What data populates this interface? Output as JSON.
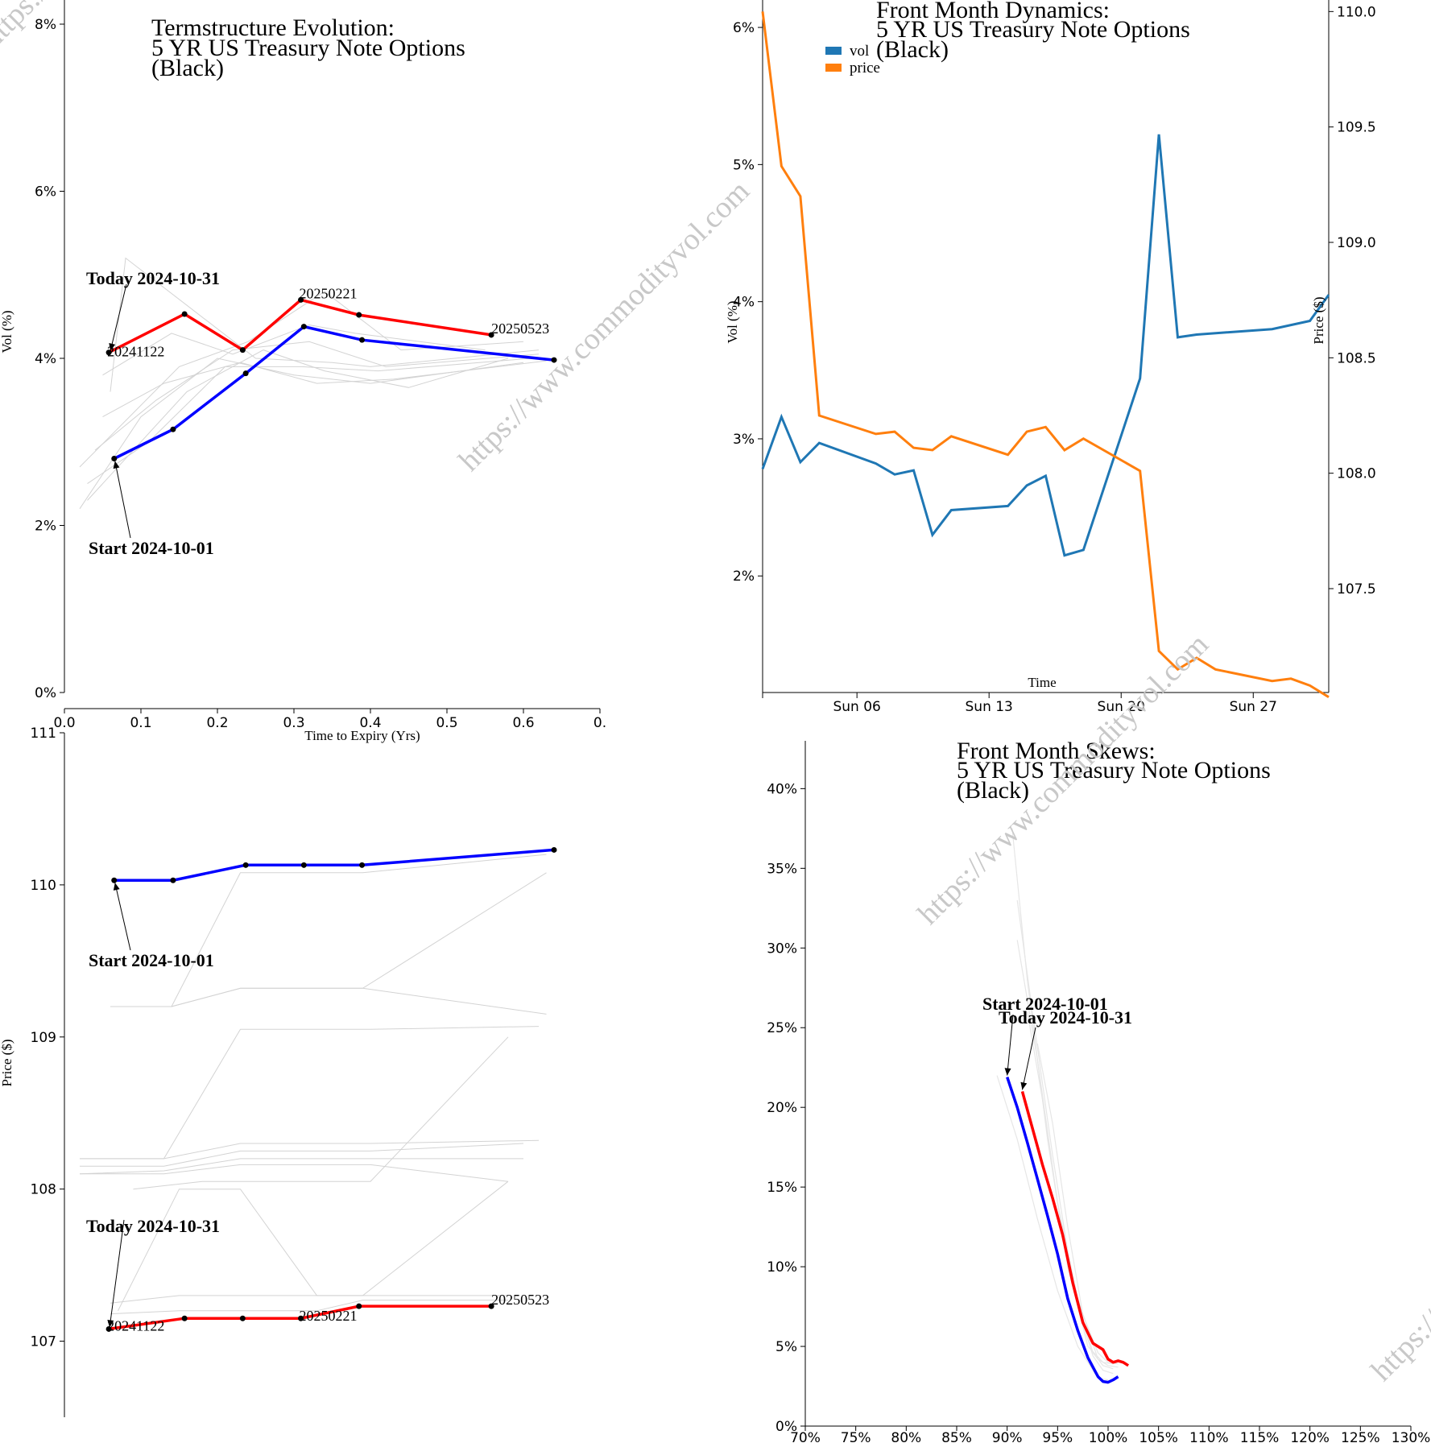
{
  "watermark": "https://www.commodityvol.com",
  "chart_data": [
    {
      "type": "line",
      "title": "Termstructure Evolution:\n5 YR US Treasury Note Options\n(Black)",
      "xlabel": "Time to Expiry (Yrs)",
      "ylabel": "Vol (%)",
      "xlim": [
        0,
        0.7
      ],
      "ylim": [
        0,
        8
      ],
      "x_ticks": [
        0.0,
        0.1,
        0.2,
        0.3,
        0.4,
        0.5,
        0.6,
        0.7
      ],
      "x_tick_labels": [
        "0.0",
        "0.1",
        "0.2",
        "0.3",
        "0.4",
        "0.5",
        "0.6",
        "0."
      ],
      "y_ticks": [
        0,
        2,
        4,
        6,
        8
      ],
      "y_tick_labels": [
        "0%",
        "2%",
        "4%",
        "6%",
        "8%"
      ],
      "series": [
        {
          "name": "Start 2024-10-01",
          "color": "#0000ff",
          "x": [
            0.065,
            0.142,
            0.237,
            0.313,
            0.389,
            0.64
          ],
          "y": [
            2.8,
            3.15,
            3.82,
            4.38,
            4.22,
            3.98
          ]
        },
        {
          "name": "Today 2024-10-31",
          "color": "#ff0000",
          "x": [
            0.058,
            0.157,
            0.233,
            0.309,
            0.385,
            0.558
          ],
          "y": [
            4.07,
            4.53,
            4.1,
            4.7,
            4.52,
            4.28
          ]
        }
      ],
      "history_color": "#d3d3d3",
      "history": [
        {
          "x": [
            0.02,
            0.1,
            0.2,
            0.3,
            0.4,
            0.6
          ],
          "y": [
            2.2,
            3.3,
            4.0,
            3.8,
            3.7,
            3.95
          ]
        },
        {
          "x": [
            0.03,
            0.11,
            0.21,
            0.31,
            0.41,
            0.61
          ],
          "y": [
            2.5,
            3.0,
            3.9,
            3.9,
            3.85,
            4.0
          ]
        },
        {
          "x": [
            0.04,
            0.12,
            0.22,
            0.32,
            0.42,
            0.62
          ],
          "y": [
            2.9,
            3.5,
            4.1,
            4.2,
            3.9,
            4.05
          ]
        },
        {
          "x": [
            0.05,
            0.13,
            0.23,
            0.33,
            0.43,
            0.63
          ],
          "y": [
            3.3,
            3.7,
            3.95,
            3.7,
            3.75,
            3.97
          ]
        },
        {
          "x": [
            0.02,
            0.15,
            0.24,
            0.34,
            0.44,
            0.6
          ],
          "y": [
            2.7,
            3.9,
            4.2,
            4.8,
            4.1,
            4.2
          ]
        },
        {
          "x": [
            0.05,
            0.14,
            0.22,
            0.32,
            0.38,
            0.55
          ],
          "y": [
            3.8,
            4.3,
            4.05,
            4.4,
            4.3,
            4.1
          ]
        },
        {
          "x": [
            0.06,
            0.08,
            0.25,
            0.35,
            0.4,
            0.62
          ],
          "y": [
            3.6,
            5.2,
            4.0,
            3.95,
            3.9,
            4.1
          ]
        },
        {
          "x": [
            0.03,
            0.16,
            0.26,
            0.34,
            0.45,
            0.58
          ],
          "y": [
            2.3,
            3.6,
            4.1,
            3.85,
            3.65,
            4.0
          ]
        }
      ],
      "annotations": [
        "Today 2024-10-31",
        "Start 2024-10-01",
        "20241122",
        "20250221",
        "20250523"
      ]
    },
    {
      "type": "line",
      "title": "Front Month Dynamics:\n5 YR US Treasury Note Options\n(Black)",
      "xlabel": "Time",
      "ylabel": "Vol (%)",
      "y2label": "Price ($)",
      "x_tick_labels": [
        "Sun 06",
        "Sun 13",
        "Sun 20",
        "Sun 27"
      ],
      "x_ticks_day": [
        6,
        13,
        20,
        27
      ],
      "xlim_day": [
        1,
        31
      ],
      "ylim": [
        1.15,
        6.2
      ],
      "y2lim": [
        107.05,
        110.05
      ],
      "y_ticks": [
        2,
        3,
        4,
        5,
        6
      ],
      "y_tick_labels": [
        "2%",
        "3%",
        "4%",
        "5%",
        "6%"
      ],
      "y2_ticks": [
        107.5,
        108.0,
        108.5,
        109.0,
        109.5,
        110.0
      ],
      "y2_tick_labels": [
        "107.5",
        "108.0",
        "108.5",
        "109.0",
        "109.5",
        "110.0"
      ],
      "legend": "top-left",
      "series": [
        {
          "name": "vol",
          "color": "#1f77b4",
          "axis": "left",
          "day": [
            1,
            2,
            3,
            4,
            7,
            8,
            9,
            10,
            11,
            14,
            15,
            16,
            17,
            18,
            21,
            22,
            23,
            24,
            28,
            30,
            31
          ],
          "y": [
            2.78,
            3.16,
            2.83,
            2.97,
            2.82,
            2.74,
            2.77,
            2.3,
            2.48,
            2.51,
            2.66,
            2.73,
            2.15,
            2.19,
            3.44,
            5.22,
            3.74,
            3.76,
            3.8,
            3.86,
            4.05
          ]
        },
        {
          "name": "price",
          "color": "#ff7f0e",
          "axis": "right",
          "day": [
            1,
            2,
            3,
            4,
            7,
            8,
            9,
            10,
            11,
            14,
            15,
            16,
            17,
            18,
            21,
            22,
            23,
            24,
            25,
            28,
            29,
            30,
            31
          ],
          "y": [
            110.0,
            109.33,
            109.2,
            108.25,
            108.17,
            108.18,
            108.11,
            108.1,
            108.16,
            108.08,
            108.18,
            108.2,
            108.1,
            108.15,
            108.01,
            107.23,
            107.15,
            107.2,
            107.15,
            107.1,
            107.11,
            107.08,
            107.03
          ]
        }
      ]
    },
    {
      "type": "line",
      "title": "",
      "xlabel": "",
      "ylabel": "Price ($)",
      "xlim": [
        0,
        0.7
      ],
      "ylim": [
        106.5,
        111.0
      ],
      "y_ticks": [
        107,
        108,
        109,
        110,
        111
      ],
      "y_tick_labels": [
        "107",
        "108",
        "109",
        "110",
        "111"
      ],
      "series": [
        {
          "name": "Start 2024-10-01",
          "color": "#0000ff",
          "x": [
            0.065,
            0.142,
            0.237,
            0.313,
            0.389,
            0.64
          ],
          "y": [
            110.03,
            110.03,
            110.13,
            110.13,
            110.13,
            110.23
          ]
        },
        {
          "name": "Today 2024-10-31",
          "color": "#ff0000",
          "x": [
            0.058,
            0.157,
            0.233,
            0.309,
            0.385,
            0.558
          ],
          "y": [
            107.08,
            107.15,
            107.15,
            107.15,
            107.23,
            107.23
          ]
        }
      ],
      "history_color": "#d3d3d3",
      "history": [
        {
          "x": [
            0.06,
            0.14,
            0.23,
            0.31,
            0.39,
            0.63
          ],
          "y": [
            109.2,
            109.2,
            109.32,
            109.32,
            109.32,
            109.15
          ]
        },
        {
          "x": [
            0.06,
            0.14,
            0.23,
            0.31,
            0.39,
            0.63
          ],
          "y": [
            109.2,
            109.2,
            110.08,
            110.08,
            110.08,
            110.2
          ]
        },
        {
          "x": [
            0.06,
            0.14,
            0.23,
            0.31,
            0.39,
            0.63
          ],
          "y": [
            109.2,
            109.2,
            109.32,
            109.32,
            109.32,
            110.08
          ]
        },
        {
          "x": [
            0.02,
            0.13,
            0.23,
            0.35,
            0.4,
            0.62
          ],
          "y": [
            108.2,
            108.2,
            109.05,
            109.05,
            109.05,
            109.07
          ]
        },
        {
          "x": [
            0.02,
            0.13,
            0.23,
            0.35,
            0.4,
            0.62
          ],
          "y": [
            108.2,
            108.2,
            108.3,
            108.3,
            108.3,
            108.32
          ]
        },
        {
          "x": [
            0.02,
            0.13,
            0.23,
            0.35,
            0.4,
            0.6
          ],
          "y": [
            108.15,
            108.15,
            108.25,
            108.25,
            108.25,
            108.3
          ]
        },
        {
          "x": [
            0.02,
            0.13,
            0.23,
            0.35,
            0.4,
            0.6
          ],
          "y": [
            108.1,
            108.12,
            108.2,
            108.2,
            108.2,
            108.2
          ]
        },
        {
          "x": [
            0.02,
            0.13,
            0.23,
            0.35,
            0.4,
            0.58
          ],
          "y": [
            108.1,
            108.1,
            108.16,
            108.16,
            108.16,
            108.05
          ]
        },
        {
          "x": [
            0.09,
            0.18,
            0.23,
            0.35,
            0.4,
            0.58
          ],
          "y": [
            108.0,
            108.05,
            108.05,
            108.05,
            108.05,
            109.0
          ]
        },
        {
          "x": [
            0.07,
            0.15,
            0.23,
            0.33,
            0.39,
            0.58
          ],
          "y": [
            107.2,
            108.0,
            108.0,
            107.3,
            107.3,
            108.05
          ]
        },
        {
          "x": [
            0.06,
            0.15,
            0.23,
            0.33,
            0.39,
            0.58
          ],
          "y": [
            107.25,
            107.3,
            107.3,
            107.3,
            107.3,
            107.3
          ]
        },
        {
          "x": [
            0.06,
            0.15,
            0.23,
            0.33,
            0.39,
            0.58
          ],
          "y": [
            107.18,
            107.2,
            107.2,
            107.2,
            107.27,
            107.27
          ]
        }
      ]
    },
    {
      "type": "line",
      "title": "Front Month Skews:\n5 YR US Treasury Note Options\n(Black)",
      "xlabel": "",
      "ylabel": "",
      "xlim": [
        70,
        130
      ],
      "ylim": [
        0,
        43
      ],
      "x_ticks": [
        70,
        75,
        80,
        85,
        90,
        95,
        100,
        105,
        110,
        115,
        120,
        125,
        130
      ],
      "x_tick_labels": [
        "70%",
        "75%",
        "80%",
        "85%",
        "90%",
        "95%",
        "100%",
        "105%",
        "110%",
        "115%",
        "120%",
        "125%",
        "130%"
      ],
      "y_ticks": [
        0,
        5,
        10,
        15,
        20,
        25,
        30,
        35,
        40
      ],
      "y_tick_labels": [
        "0%",
        "5%",
        "10%",
        "15%",
        "20%",
        "25%",
        "30%",
        "35%",
        "40%"
      ],
      "series": [
        {
          "name": "Start 2024-10-01",
          "color": "#0000ff",
          "x": [
            90.0,
            91.0,
            92.0,
            93.0,
            94.0,
            95.0,
            96.0,
            97.0,
            98.0,
            99.0,
            99.5,
            100.0,
            100.5,
            101.0
          ],
          "y": [
            21.9,
            20.0,
            17.8,
            15.5,
            13.2,
            10.8,
            8.0,
            6.0,
            4.3,
            3.1,
            2.8,
            2.75,
            2.9,
            3.1
          ]
        },
        {
          "name": "Today 2024-10-31",
          "color": "#ff0000",
          "x": [
            91.5,
            92.5,
            93.5,
            94.5,
            95.5,
            96.5,
            97.5,
            98.5,
            99.5,
            100.0,
            100.5,
            101.0,
            101.5,
            102.0
          ],
          "y": [
            21.0,
            18.7,
            16.4,
            14.3,
            12.0,
            9.0,
            6.5,
            5.2,
            4.8,
            4.2,
            4.0,
            4.1,
            4.0,
            3.8
          ]
        }
      ],
      "history_color": "#e6e6e6",
      "history": [
        {
          "x": [
            90.5,
            92,
            94,
            96,
            98,
            99.5,
            100.5
          ],
          "y": [
            37.5,
            28.0,
            18.0,
            10.0,
            5.0,
            4.0,
            3.9
          ]
        },
        {
          "x": [
            91,
            92.5,
            94.5,
            96.5,
            98.5,
            99.5,
            100.5
          ],
          "y": [
            33.0,
            26.0,
            17.0,
            9.0,
            4.6,
            3.8,
            3.6
          ]
        },
        {
          "x": [
            91,
            93,
            95,
            97,
            98.5,
            99.5,
            100.5
          ],
          "y": [
            30.5,
            23.0,
            14.0,
            7.5,
            4.4,
            3.5,
            3.3
          ]
        },
        {
          "x": [
            92,
            93.5,
            95,
            97,
            99,
            100,
            101
          ],
          "y": [
            26.0,
            20.5,
            14.0,
            8.0,
            4.2,
            3.8,
            3.7
          ]
        },
        {
          "x": [
            93,
            94.5,
            96,
            97.5,
            99,
            100,
            101
          ],
          "y": [
            24.0,
            19.0,
            12.5,
            7.0,
            4.6,
            4.0,
            3.9
          ]
        },
        {
          "x": [
            89,
            91,
            93,
            95,
            97,
            99,
            100
          ],
          "y": [
            22.0,
            18.0,
            13.0,
            8.5,
            5.0,
            3.0,
            2.9
          ]
        }
      ]
    }
  ]
}
